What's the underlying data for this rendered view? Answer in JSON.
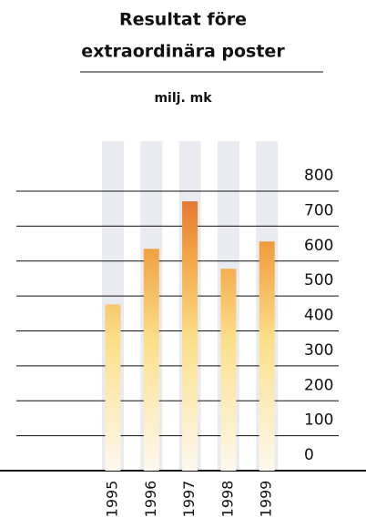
{
  "chart_data": {
    "type": "bar",
    "title": [
      "Resultat före",
      "extraordinära poster"
    ],
    "subtitle": "milj. mk",
    "categories": [
      "1995",
      "1996",
      "1997",
      "1998",
      "1999"
    ],
    "values": [
      476,
      635,
      771,
      578,
      656
    ],
    "color": "#e07a2e",
    "ylim": [
      0,
      800
    ],
    "yticks": [
      0,
      100,
      200,
      300,
      400,
      500,
      600,
      700,
      800
    ],
    "grid": true
  }
}
